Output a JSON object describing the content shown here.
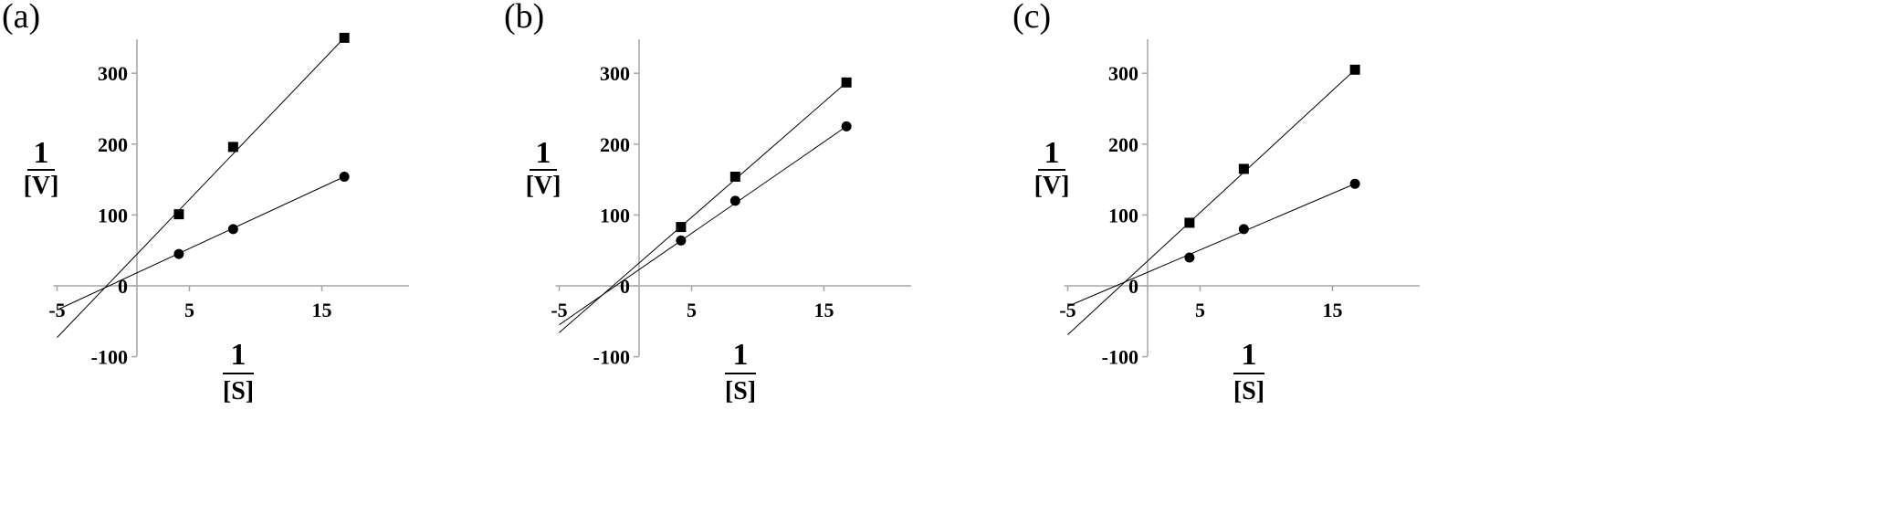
{
  "chart_data": [
    {
      "type": "scatter",
      "panel_label": "(a)",
      "xlabel": {
        "numerator": "1",
        "denominator": "[S]"
      },
      "ylabel": {
        "numerator": "1",
        "denominator": "[V]"
      },
      "xlim": [
        -5,
        20
      ],
      "ylim": [
        -100,
        350
      ],
      "x_ticks": [
        -5,
        5,
        15
      ],
      "y_ticks": [
        -100,
        0,
        100,
        200,
        300
      ],
      "series": [
        {
          "marker": "square",
          "x": [
            4.2,
            8.3,
            16.7
          ],
          "y": [
            101,
            196,
            350
          ],
          "fit_line": {
            "x": [
              -5,
              16.7
            ],
            "y": [
              -73,
              350
            ]
          }
        },
        {
          "marker": "circle",
          "x": [
            4.2,
            8.3,
            16.7
          ],
          "y": [
            45,
            80,
            154
          ],
          "fit_line": {
            "x": [
              -5,
              16.7
            ],
            "y": [
              -34,
              154
            ]
          }
        }
      ]
    },
    {
      "type": "scatter",
      "panel_label": "(b)",
      "xlabel": {
        "numerator": "1",
        "denominator": "[S]"
      },
      "ylabel": {
        "numerator": "1",
        "denominator": "[V]"
      },
      "xlim": [
        -5,
        20
      ],
      "ylim": [
        -100,
        350
      ],
      "x_ticks": [
        -5,
        5,
        15
      ],
      "y_ticks": [
        -100,
        0,
        100,
        200,
        300
      ],
      "series": [
        {
          "marker": "square",
          "x": [
            4.2,
            8.3,
            16.7
          ],
          "y": [
            83,
            154,
            287
          ],
          "fit_line": {
            "x": [
              -5,
              16.7
            ],
            "y": [
              -66,
              287
            ]
          }
        },
        {
          "marker": "circle",
          "x": [
            4.2,
            8.3,
            16.7
          ],
          "y": [
            64,
            120,
            225
          ],
          "fit_line": {
            "x": [
              -5,
              16.7
            ],
            "y": [
              -55,
              225
            ]
          }
        }
      ]
    },
    {
      "type": "scatter",
      "panel_label": "(c)",
      "xlabel": {
        "numerator": "1",
        "denominator": "[S]"
      },
      "ylabel": {
        "numerator": "1",
        "denominator": "[V]"
      },
      "xlim": [
        -5,
        20
      ],
      "ylim": [
        -100,
        350
      ],
      "x_ticks": [
        -5,
        5,
        15
      ],
      "y_ticks": [
        -100,
        0,
        100,
        200,
        300
      ],
      "series": [
        {
          "marker": "square",
          "x": [
            4.2,
            8.3,
            16.7
          ],
          "y": [
            89,
            165,
            305
          ],
          "fit_line": {
            "x": [
              -5,
              16.7
            ],
            "y": [
              -69,
              305
            ]
          }
        },
        {
          "marker": "circle",
          "x": [
            4.2,
            8.3,
            16.7
          ],
          "y": [
            40,
            80,
            144
          ],
          "fit_line": {
            "x": [
              -5,
              16.7
            ],
            "y": [
              -29,
              144
            ]
          }
        }
      ]
    }
  ]
}
